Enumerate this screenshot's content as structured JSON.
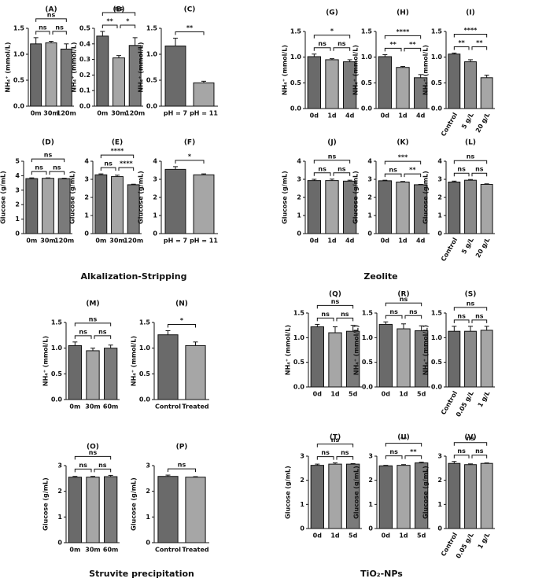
{
  "chart_data": [
    {
      "type": "bar",
      "title": "(A)",
      "y_label": "NH₄⁺ (mmol/L)",
      "categories": [
        "0m",
        "30m",
        "120m"
      ],
      "values": [
        1.2,
        1.22,
        1.1
      ],
      "errors": [
        0.12,
        0.03,
        0.1
      ],
      "colors": [
        "#6a6a6a",
        "#a6a6a6",
        "#7a7a7a"
      ],
      "ylim": [
        0,
        1.5
      ],
      "yticks": [
        {
          "value": 0,
          "label": "0.0"
        },
        0.5,
        {
          "value": 1,
          "label": "1.0"
        },
        1.5
      ],
      "significance": [
        "ns",
        "ns",
        "ns"
      ]
    },
    {
      "type": "bar",
      "title": "(B)",
      "y_label": "NH₄⁺ (mmol/L)",
      "categories": [
        "0m",
        "30m",
        "120m"
      ],
      "values": [
        0.45,
        0.31,
        0.39
      ],
      "errors": [
        0.03,
        0.015,
        0.05
      ],
      "colors": [
        "#6a6a6a",
        "#a6a6a6",
        "#7a7a7a"
      ],
      "ylim": [
        0,
        0.5
      ],
      "yticks": [
        {
          "value": 0,
          "label": "0.0"
        },
        0.1,
        0.2,
        0.3,
        0.4,
        0.5
      ],
      "significance": [
        "**",
        "*",
        "ns"
      ]
    },
    {
      "type": "bar",
      "title": "(C)",
      "y_label": "NH₄⁺ (mmol/L)",
      "categories": [
        "pH = 7",
        "pH = 11"
      ],
      "values": [
        1.16,
        0.45
      ],
      "errors": [
        0.15,
        0.03
      ],
      "colors": [
        "#6a6a6a",
        "#a6a6a6"
      ],
      "ylim": [
        0,
        1.5
      ],
      "yticks": [
        {
          "value": 0,
          "label": "0.0"
        },
        0.5,
        {
          "value": 1,
          "label": "1.0"
        },
        1.5
      ],
      "significance": [
        "**"
      ]
    },
    {
      "type": "bar",
      "title": "(D)",
      "y_label": "Glucose (g/mL)",
      "categories": [
        "0m",
        "30m",
        "120m"
      ],
      "values": [
        3.8,
        3.82,
        3.8
      ],
      "errors": [
        0.05,
        0.03,
        0.03
      ],
      "colors": [
        "#6a6a6a",
        "#a6a6a6",
        "#7a7a7a"
      ],
      "ylim": [
        0,
        5
      ],
      "yticks": [
        0,
        1,
        2,
        3,
        4,
        5
      ],
      "significance": [
        "ns",
        "ns",
        "ns"
      ]
    },
    {
      "type": "bar",
      "title": "(E)",
      "y_label": "Glucose (g/mL)",
      "categories": [
        "0m",
        "30m",
        "120m"
      ],
      "values": [
        3.25,
        3.15,
        2.7
      ],
      "errors": [
        0.05,
        0.08,
        0.03
      ],
      "colors": [
        "#6a6a6a",
        "#a6a6a6",
        "#7a7a7a"
      ],
      "ylim": [
        0,
        4
      ],
      "yticks": [
        0,
        1,
        2,
        3,
        4
      ],
      "significance": [
        "ns",
        "****",
        "****"
      ]
    },
    {
      "type": "bar",
      "title": "(F)",
      "y_label": "Glucose (g/mL)",
      "categories": [
        "pH = 7",
        "pH = 11"
      ],
      "values": [
        3.55,
        3.25
      ],
      "errors": [
        0.15,
        0.05
      ],
      "colors": [
        "#6a6a6a",
        "#a6a6a6"
      ],
      "ylim": [
        0,
        4
      ],
      "yticks": [
        0,
        1,
        2,
        3,
        4
      ],
      "significance": [
        "*"
      ]
    },
    {
      "type": "bar",
      "title": "(G)",
      "y_label": "NH₄⁺ (mmol/L)",
      "categories": [
        "0d",
        "1d",
        "4d"
      ],
      "values": [
        1.01,
        0.95,
        0.91
      ],
      "errors": [
        0.05,
        0.02,
        0.04
      ],
      "colors": [
        "#6a6a6a",
        "#a6a6a6",
        "#7a7a7a"
      ],
      "ylim": [
        0,
        1.5
      ],
      "yticks": [
        {
          "value": 0,
          "label": "0.0"
        },
        0.5,
        {
          "value": 1,
          "label": "1.0"
        },
        1.5
      ],
      "significance": [
        "ns",
        "ns",
        "*"
      ]
    },
    {
      "type": "bar",
      "title": "(H)",
      "y_label": "NH₄⁺ (mmol/L)",
      "categories": [
        "0d",
        "1d",
        "4d"
      ],
      "values": [
        1.01,
        0.8,
        0.6
      ],
      "errors": [
        0.04,
        0.02,
        0.06
      ],
      "colors": [
        "#6a6a6a",
        "#a6a6a6",
        "#7a7a7a"
      ],
      "ylim": [
        0,
        1.5
      ],
      "yticks": [
        {
          "value": 0,
          "label": "0.0"
        },
        0.5,
        {
          "value": 1,
          "label": "1.0"
        },
        1.5
      ],
      "significance": [
        "**",
        "**",
        "****"
      ]
    },
    {
      "type": "bar",
      "title": "(I)",
      "y_label": "NH₄⁺ (mmol/L)",
      "categories": [
        "Control",
        "5 g/L",
        "20 g/L"
      ],
      "values": [
        1.06,
        0.91,
        0.6
      ],
      "errors": [
        0.02,
        0.04,
        0.05
      ],
      "colors": [
        "#6a6a6a",
        "#8a8a8a",
        "#a6a6a6"
      ],
      "ylim": [
        0,
        1.5
      ],
      "yticks": [
        {
          "value": 0,
          "label": "0.0"
        },
        0.5,
        {
          "value": 1,
          "label": "1.0"
        },
        1.5
      ],
      "significance": [
        "**",
        "**",
        "****"
      ]
    },
    {
      "type": "bar",
      "title": "(J)",
      "y_label": "Glucose (g/mL)",
      "categories": [
        "0d",
        "1d",
        "4d"
      ],
      "values": [
        2.93,
        2.93,
        2.9
      ],
      "errors": [
        0.07,
        0.08,
        0.05
      ],
      "colors": [
        "#6a6a6a",
        "#a6a6a6",
        "#7a7a7a"
      ],
      "ylim": [
        0,
        4
      ],
      "yticks": [
        0,
        1,
        2,
        3,
        4
      ],
      "significance": [
        "ns",
        "ns",
        "ns"
      ]
    },
    {
      "type": "bar",
      "title": "(K)",
      "y_label": "Glucose (g/mL)",
      "categories": [
        "0d",
        "1d",
        "4d"
      ],
      "values": [
        2.92,
        2.85,
        2.7
      ],
      "errors": [
        0.03,
        0.03,
        0.02
      ],
      "colors": [
        "#6a6a6a",
        "#a6a6a6",
        "#7a7a7a"
      ],
      "ylim": [
        0,
        4
      ],
      "yticks": [
        0,
        1,
        2,
        3,
        4
      ],
      "significance": [
        "ns",
        "**",
        "***"
      ]
    },
    {
      "type": "bar",
      "title": "(L)",
      "y_label": "Glucose (g/mL)",
      "categories": [
        "Control",
        "5 g/L",
        "20 g/L"
      ],
      "values": [
        2.85,
        2.95,
        2.72
      ],
      "errors": [
        0.05,
        0.04,
        0.03
      ],
      "colors": [
        "#6a6a6a",
        "#8a8a8a",
        "#a6a6a6"
      ],
      "ylim": [
        0,
        4
      ],
      "yticks": [
        0,
        1,
        2,
        3,
        4
      ],
      "significance": [
        "ns",
        "ns",
        "ns"
      ]
    },
    {
      "type": "bar",
      "title": "(M)",
      "y_label": "NH₄⁺ (mmol/L)",
      "categories": [
        "0m",
        "30m",
        "60m"
      ],
      "values": [
        1.05,
        0.95,
        1.0
      ],
      "errors": [
        0.07,
        0.05,
        0.06
      ],
      "colors": [
        "#6a6a6a",
        "#a6a6a6",
        "#7a7a7a"
      ],
      "ylim": [
        0,
        1.5
      ],
      "yticks": [
        {
          "value": 0,
          "label": "0.0"
        },
        0.5,
        {
          "value": 1,
          "label": "1.0"
        },
        1.5
      ],
      "significance": [
        "ns",
        "ns",
        "ns"
      ]
    },
    {
      "type": "bar",
      "title": "(N)",
      "y_label": "NH₄⁺ (mmol/L)",
      "categories": [
        "Control",
        "Treated"
      ],
      "values": [
        1.26,
        1.05
      ],
      "errors": [
        0.08,
        0.07
      ],
      "colors": [
        "#6a6a6a",
        "#a6a6a6"
      ],
      "ylim": [
        0,
        1.5
      ],
      "yticks": [
        {
          "value": 0,
          "label": "0.0"
        },
        0.5,
        {
          "value": 1,
          "label": "1.0"
        },
        1.5
      ],
      "significance": [
        "*"
      ]
    },
    {
      "type": "bar",
      "title": "(O)",
      "y_label": "Glucose (g/mL)",
      "categories": [
        "0m",
        "30m",
        "60m"
      ],
      "values": [
        2.55,
        2.55,
        2.57
      ],
      "errors": [
        0.03,
        0.03,
        0.05
      ],
      "colors": [
        "#6a6a6a",
        "#a6a6a6",
        "#7a7a7a"
      ],
      "ylim": [
        0,
        3
      ],
      "yticks": [
        0,
        1,
        2,
        3
      ],
      "significance": [
        "ns",
        "ns",
        "ns"
      ]
    },
    {
      "type": "bar",
      "title": "(P)",
      "y_label": "Glucose (g/mL)",
      "categories": [
        "Control",
        "Treated"
      ],
      "values": [
        2.58,
        2.55
      ],
      "errors": [
        0.05,
        0.02
      ],
      "colors": [
        "#6a6a6a",
        "#a6a6a6"
      ],
      "ylim": [
        0,
        3
      ],
      "yticks": [
        0,
        1,
        2,
        3
      ],
      "significance": [
        "ns"
      ]
    },
    {
      "type": "bar",
      "title": "(Q)",
      "y_label": "NH₄⁺ (mmol/L)",
      "categories": [
        "0d",
        "1d",
        "5d"
      ],
      "values": [
        1.22,
        1.1,
        1.13
      ],
      "errors": [
        0.05,
        0.12,
        0.12
      ],
      "colors": [
        "#6a6a6a",
        "#a6a6a6",
        "#7a7a7a"
      ],
      "ylim": [
        0,
        1.5
      ],
      "yticks": [
        {
          "value": 0,
          "label": "0.0"
        },
        0.5,
        {
          "value": 1,
          "label": "1.0"
        },
        1.5
      ],
      "significance": [
        "ns",
        "ns",
        "ns"
      ]
    },
    {
      "type": "bar",
      "title": "(R)",
      "y_label": "NH₄⁺ (mmol/L)",
      "categories": [
        "0d",
        "1d",
        "5d"
      ],
      "values": [
        1.27,
        1.18,
        1.14
      ],
      "errors": [
        0.05,
        0.1,
        0.1
      ],
      "colors": [
        "#6a6a6a",
        "#a6a6a6",
        "#7a7a7a"
      ],
      "ylim": [
        0,
        1.5
      ],
      "yticks": [
        {
          "value": 0,
          "label": "0.0"
        },
        0.5,
        {
          "value": 1,
          "label": "1.0"
        },
        1.5
      ],
      "significance": [
        "ns",
        "ns",
        "ns"
      ]
    },
    {
      "type": "bar",
      "title": "(S)",
      "y_label": "NH₄⁺ (mmol/L)",
      "categories": [
        "Control",
        "0.05 g/L",
        "1 g/L"
      ],
      "values": [
        1.13,
        1.13,
        1.15
      ],
      "errors": [
        0.1,
        0.1,
        0.08
      ],
      "colors": [
        "#6a6a6a",
        "#8a8a8a",
        "#a6a6a6"
      ],
      "ylim": [
        0,
        1.5
      ],
      "yticks": [
        {
          "value": 0,
          "label": "0.0"
        },
        0.5,
        {
          "value": 1,
          "label": "1.0"
        },
        1.5
      ],
      "significance": [
        "ns",
        "ns",
        "ns"
      ]
    },
    {
      "type": "bar",
      "title": "(T)",
      "y_label": "Glucose (g/mL)",
      "categories": [
        "0d",
        "1d",
        "5d"
      ],
      "values": [
        2.62,
        2.67,
        2.67
      ],
      "errors": [
        0.05,
        0.05,
        0.02
      ],
      "colors": [
        "#6a6a6a",
        "#a6a6a6",
        "#7a7a7a"
      ],
      "ylim": [
        0,
        3
      ],
      "yticks": [
        0,
        1,
        2,
        3
      ],
      "significance": [
        "ns",
        "ns",
        "ns"
      ]
    },
    {
      "type": "bar",
      "title": "(U)",
      "y_label": "Glucose (g/mL)",
      "categories": [
        "0d",
        "1d",
        "5d"
      ],
      "values": [
        2.6,
        2.62,
        2.72
      ],
      "errors": [
        0.02,
        0.03,
        0.03
      ],
      "colors": [
        "#6a6a6a",
        "#a6a6a6",
        "#7a7a7a"
      ],
      "ylim": [
        0,
        3
      ],
      "yticks": [
        0,
        1,
        2,
        3
      ],
      "significance": [
        "ns",
        "**",
        "**"
      ]
    },
    {
      "type": "bar",
      "title": "(V)",
      "y_label": "Glucose (g/mL)",
      "categories": [
        "Control",
        "0.05 g/L",
        "1 g/L"
      ],
      "values": [
        2.7,
        2.65,
        2.7
      ],
      "errors": [
        0.08,
        0.03,
        0.02
      ],
      "colors": [
        "#6a6a6a",
        "#8a8a8a",
        "#a6a6a6"
      ],
      "ylim": [
        0,
        3
      ],
      "yticks": [
        0,
        1,
        2,
        3
      ],
      "significance": [
        "ns",
        "ns",
        "ns"
      ]
    }
  ],
  "groups": [
    {
      "label": "Alkalization-Stripping"
    },
    {
      "label": "Zeolite"
    },
    {
      "label": "Struvite precipitation"
    },
    {
      "label": "TiO₂-NPs"
    }
  ]
}
